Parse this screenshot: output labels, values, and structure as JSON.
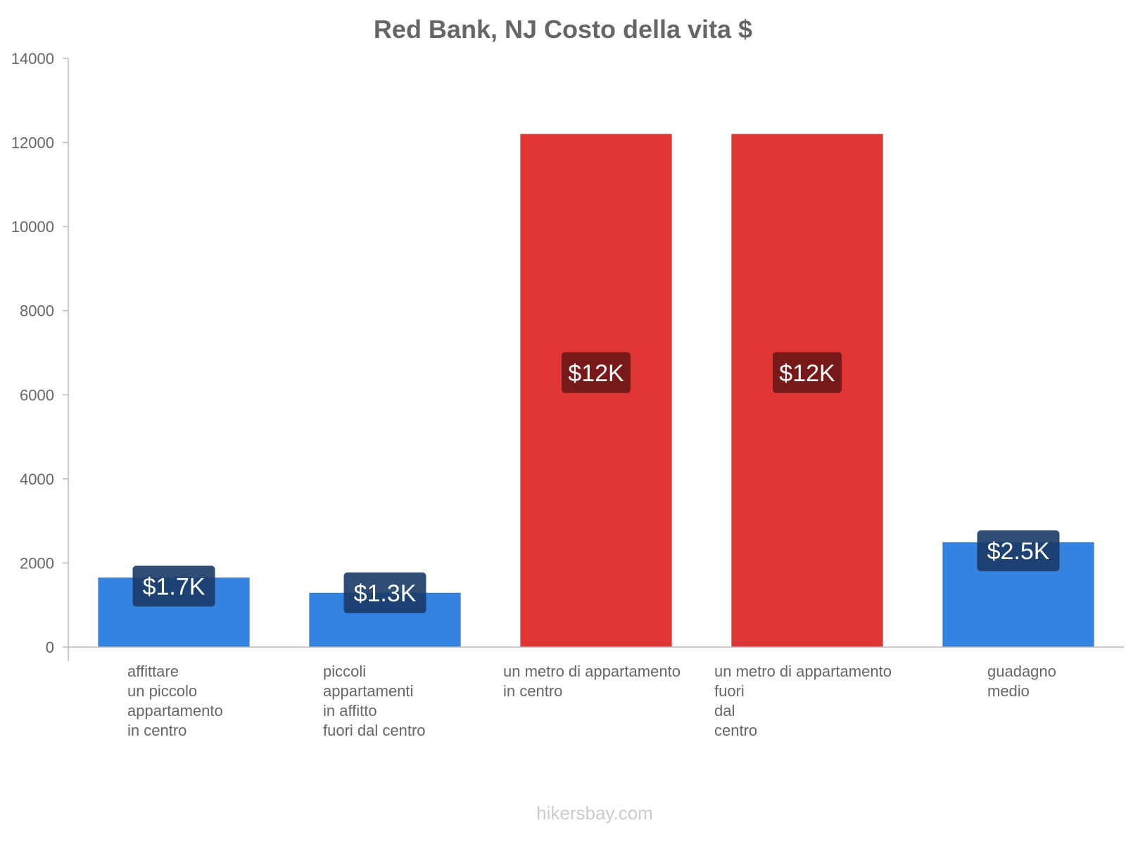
{
  "chart_data": {
    "type": "bar",
    "title": "Red Bank, NJ Costo della vita $",
    "xlabel": "",
    "ylabel": "",
    "ylim": [
      0,
      14000
    ],
    "yticks": [
      0,
      2000,
      4000,
      6000,
      8000,
      10000,
      12000,
      14000
    ],
    "categories": [
      [
        "affittare",
        "un piccolo",
        "appartamento",
        "in centro"
      ],
      [
        "piccoli",
        "appartamenti",
        "in affitto",
        "fuori dal centro"
      ],
      [
        "un metro di appartamento",
        "in centro"
      ],
      [
        "un metro di appartamento",
        "fuori",
        "dal",
        "centro"
      ],
      [
        "guadagno",
        "medio"
      ]
    ],
    "values": [
      1650,
      1290,
      12200,
      12200,
      2490
    ],
    "data_labels": [
      "$1.7K",
      "$1.3K",
      "$12K",
      "$12K",
      "$2.5K"
    ],
    "bar_colors": [
      "#3583e0",
      "#3583e0",
      "#e03535",
      "#e03535",
      "#3583e0"
    ],
    "label_bg_colors": [
      "#1a3a66",
      "#1a3a66",
      "#6b1616",
      "#6b1616",
      "#1a3a66"
    ],
    "grid": false
  },
  "footer": "hikersbay.com"
}
